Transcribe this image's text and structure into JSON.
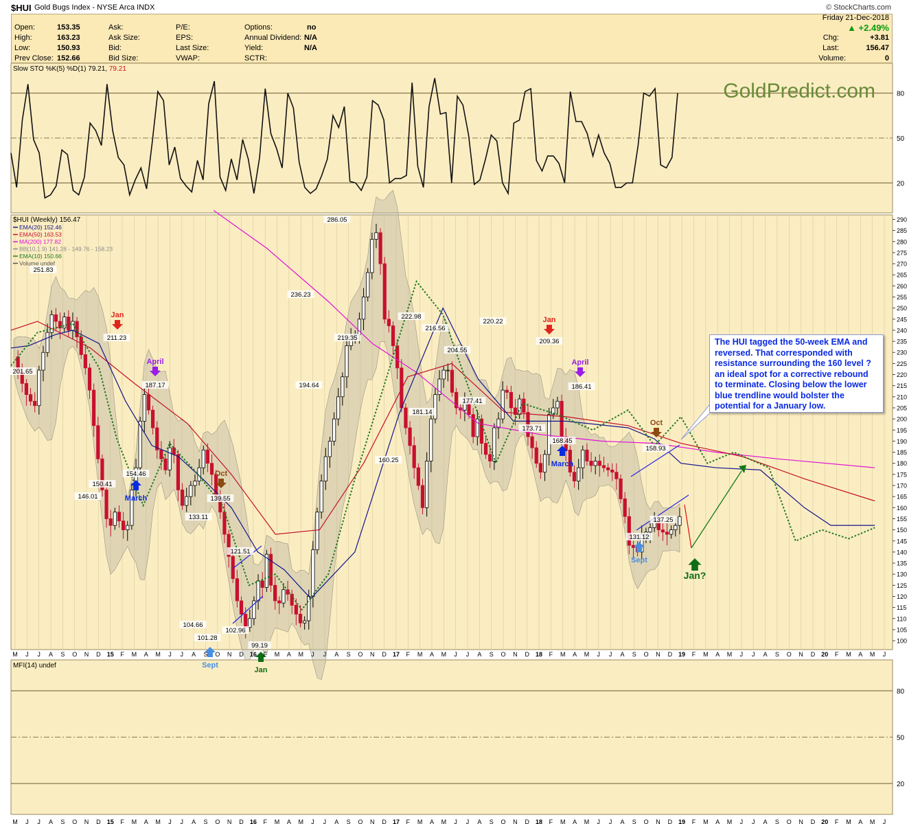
{
  "header": {
    "symbol": "$HUI",
    "name": "Gold Bugs Index - NYSE Arca  INDX",
    "source": "© StockCharts.com"
  },
  "quote": {
    "open_label": "Open:",
    "open": "153.35",
    "high_label": "High:",
    "high": "163.23",
    "low_label": "Low:",
    "low": "150.93",
    "prevclose_label": "Prev Close:",
    "prevclose": "152.66",
    "ask_label": "Ask:",
    "asksize_label": "Ask Size:",
    "bid_label": "Bid:",
    "bidsize_label": "Bid Size:",
    "pe_label": "P/E:",
    "eps_label": "EPS:",
    "lastsize_label": "Last Size:",
    "vwap_label": "VWAP:",
    "options_label": "Options:",
    "options": "no",
    "dividend_label": "Annual Dividend:",
    "dividend": "N/A",
    "yield_label": "Yield:",
    "yield": "N/A",
    "sctr_label": "SCTR:",
    "date": "Friday  21-Dec-2018",
    "pct": "▲ +2.49%",
    "chg_label": "Chg:",
    "chg": "+3.81",
    "last_label": "Last:",
    "last": "156.47",
    "volume_label": "Volume:",
    "volume": "0",
    "up_color": "#0a9a0a"
  },
  "watermark": "GoldPredict.com",
  "annotation_box": "The HUI tagged the 50-week EMA and reversed. That corresponded with resistance surrounding the 160 level ? an ideal spot for a corrective rebound to terminate. Closing below the lower blue trendline would bolster the potential for a January low.",
  "chart_data": [
    {
      "type": "line",
      "title": "Slow STO %K(5) %D(1) 79.21, 79.21",
      "title_text": "Slow STO %K(5) %D(1) 79.21,",
      "title_value2": "79.21",
      "yticks": [
        20,
        50,
        80
      ],
      "ylim": [
        0,
        100
      ],
      "series": [
        {
          "name": "Slow STO %K(5)",
          "values": [
            40,
            17,
            62,
            86,
            49,
            40,
            10,
            12,
            18,
            42,
            39,
            15,
            12,
            24,
            60,
            55,
            45,
            86,
            55,
            37,
            32,
            12,
            22,
            30,
            16,
            47,
            81,
            75,
            32,
            44,
            23,
            18,
            14,
            35,
            22,
            73,
            88,
            24,
            15,
            36,
            22,
            49,
            36,
            13,
            37,
            83,
            53,
            43,
            30,
            80,
            70,
            34,
            17,
            13,
            16,
            25,
            36,
            65,
            57,
            71,
            21,
            20,
            15,
            24,
            75,
            72,
            62,
            20,
            23,
            23,
            25,
            87,
            31,
            17,
            71,
            90,
            66,
            67,
            20,
            78,
            72,
            52,
            19,
            22,
            36,
            52,
            48,
            20,
            13,
            60,
            62,
            81,
            83,
            35,
            28,
            38,
            38,
            33,
            20,
            81,
            61,
            61,
            53,
            38,
            52,
            40,
            33,
            17,
            17,
            20,
            20,
            45,
            80,
            78,
            83,
            32,
            30,
            37,
            80
          ]
        }
      ]
    },
    {
      "type": "candlestick",
      "title": "$HUI (Weekly) 156.47",
      "yticks": [
        100,
        105,
        110,
        115,
        120,
        125,
        130,
        135,
        140,
        145,
        150,
        155,
        160,
        165,
        170,
        175,
        180,
        185,
        190,
        195,
        200,
        205,
        210,
        215,
        220,
        225,
        230,
        235,
        240,
        245,
        250,
        255,
        260,
        265,
        270,
        275,
        280,
        285,
        290
      ],
      "ylim": [
        96,
        292
      ],
      "legend": [
        "EMA(20) 152.46",
        "EMA(50) 163.53",
        "MA(200) 177.82",
        "BB(10,1.9) 141.28 - 149.76 - 158.23",
        "EMA(10) 150.66",
        "Volume undef"
      ],
      "legend_colors": [
        "#14148c",
        "#c4102a",
        "#e010d8",
        "#8a8a8a",
        "#1f7a1f",
        "#555555"
      ],
      "x_labels": [
        "M",
        "J",
        "J",
        "A",
        "S",
        "O",
        "N",
        "D",
        "15",
        "F",
        "M",
        "A",
        "M",
        "J",
        "J",
        "A",
        "S",
        "O",
        "N",
        "D",
        "16",
        "F",
        "M",
        "A",
        "M",
        "J",
        "J",
        "A",
        "S",
        "O",
        "N",
        "D",
        "17",
        "F",
        "M",
        "A",
        "M",
        "J",
        "J",
        "A",
        "S",
        "O",
        "N",
        "D",
        "18",
        "F",
        "M",
        "A",
        "M",
        "J",
        "J",
        "A",
        "S",
        "O",
        "N",
        "D",
        "19",
        "F",
        "M",
        "A",
        "M",
        "J",
        "J",
        "A",
        "S",
        "O",
        "N",
        "D",
        "20",
        "F",
        "M",
        "A",
        "M",
        "J"
      ],
      "x_index_start": 0,
      "x_index_end": 73,
      "series": [
        {
          "name": "$HUI (Weekly)",
          "values": [
            228,
            221,
            216,
            211,
            208,
            206,
            222,
            230,
            239,
            247,
            244,
            241,
            246,
            240,
            244,
            237,
            229,
            223,
            213,
            197,
            182,
            168,
            155,
            152,
            158,
            154,
            150,
            152,
            168,
            178,
            199,
            211,
            204,
            196,
            186,
            182,
            177,
            187,
            184,
            168,
            161,
            165,
            170,
            172,
            178,
            186,
            180,
            175,
            165,
            158,
            148,
            138,
            128,
            118,
            112,
            106,
            110,
            118,
            127,
            124,
            139,
            125,
            118,
            117,
            123,
            121,
            116,
            112,
            108,
            109,
            120,
            141,
            158,
            172,
            183,
            190,
            200,
            210,
            219,
            233,
            237,
            238,
            245,
            255,
            266,
            281,
            284,
            270,
            245,
            242,
            233,
            223,
            205,
            196,
            188,
            178,
            170,
            160,
            181,
            200,
            211,
            218,
            222,
            222,
            212,
            205,
            204,
            208,
            202,
            192,
            200,
            189,
            184,
            181,
            196,
            200,
            213,
            212,
            205,
            202,
            209,
            203,
            192,
            187,
            180,
            176,
            184,
            202,
            205,
            208,
            192,
            186,
            176,
            172,
            178,
            186,
            181,
            179,
            181,
            179,
            178,
            177,
            176,
            173,
            164,
            156,
            143,
            142,
            140,
            148,
            149,
            151,
            154,
            150,
            149,
            148,
            150,
            152,
            156
          ]
        }
      ],
      "ema20": [
        {
          "x": 0,
          "y": 232
        },
        {
          "x": 0.02,
          "y": 233
        },
        {
          "x": 0.05,
          "y": 238
        },
        {
          "x": 0.07,
          "y": 240
        },
        {
          "x": 0.1,
          "y": 234
        },
        {
          "x": 0.13,
          "y": 208
        },
        {
          "x": 0.16,
          "y": 188
        },
        {
          "x": 0.19,
          "y": 183
        },
        {
          "x": 0.22,
          "y": 172
        },
        {
          "x": 0.25,
          "y": 160
        },
        {
          "x": 0.28,
          "y": 140
        },
        {
          "x": 0.31,
          "y": 132
        },
        {
          "x": 0.34,
          "y": 119
        },
        {
          "x": 0.39,
          "y": 140
        },
        {
          "x": 0.44,
          "y": 202
        },
        {
          "x": 0.49,
          "y": 250
        },
        {
          "x": 0.53,
          "y": 218
        },
        {
          "x": 0.57,
          "y": 199
        },
        {
          "x": 0.63,
          "y": 199
        },
        {
          "x": 0.7,
          "y": 196
        },
        {
          "x": 0.73,
          "y": 191
        },
        {
          "x": 0.76,
          "y": 180
        },
        {
          "x": 0.8,
          "y": 178
        },
        {
          "x": 0.85,
          "y": 177
        },
        {
          "x": 0.9,
          "y": 160
        },
        {
          "x": 0.93,
          "y": 152
        },
        {
          "x": 0.98,
          "y": 152
        }
      ],
      "ema50": [
        {
          "x": 0,
          "y": 240
        },
        {
          "x": 0.03,
          "y": 244
        },
        {
          "x": 0.09,
          "y": 232
        },
        {
          "x": 0.14,
          "y": 216
        },
        {
          "x": 0.2,
          "y": 198
        },
        {
          "x": 0.25,
          "y": 175
        },
        {
          "x": 0.3,
          "y": 148
        },
        {
          "x": 0.35,
          "y": 150
        },
        {
          "x": 0.4,
          "y": 180
        },
        {
          "x": 0.45,
          "y": 219
        },
        {
          "x": 0.5,
          "y": 225
        },
        {
          "x": 0.56,
          "y": 203
        },
        {
          "x": 0.63,
          "y": 201
        },
        {
          "x": 0.7,
          "y": 197
        },
        {
          "x": 0.76,
          "y": 189
        },
        {
          "x": 0.83,
          "y": 183
        },
        {
          "x": 0.9,
          "y": 173
        },
        {
          "x": 0.98,
          "y": 163
        }
      ],
      "ma200": [
        {
          "x": 0.23,
          "y": 294
        },
        {
          "x": 0.29,
          "y": 277
        },
        {
          "x": 0.36,
          "y": 253
        },
        {
          "x": 0.41,
          "y": 234
        },
        {
          "x": 0.46,
          "y": 221
        },
        {
          "x": 0.53,
          "y": 198
        },
        {
          "x": 0.6,
          "y": 193
        },
        {
          "x": 0.67,
          "y": 190
        },
        {
          "x": 0.73,
          "y": 189
        },
        {
          "x": 0.8,
          "y": 185
        },
        {
          "x": 0.87,
          "y": 182
        },
        {
          "x": 0.98,
          "y": 178
        }
      ],
      "ema10": [
        {
          "x": 0,
          "y": 224
        },
        {
          "x": 0.03,
          "y": 239
        },
        {
          "x": 0.07,
          "y": 243
        },
        {
          "x": 0.1,
          "y": 223
        },
        {
          "x": 0.12,
          "y": 191
        },
        {
          "x": 0.15,
          "y": 161
        },
        {
          "x": 0.18,
          "y": 189
        },
        {
          "x": 0.21,
          "y": 176
        },
        {
          "x": 0.24,
          "y": 161
        },
        {
          "x": 0.27,
          "y": 125
        },
        {
          "x": 0.3,
          "y": 130
        },
        {
          "x": 0.33,
          "y": 114
        },
        {
          "x": 0.36,
          "y": 130
        },
        {
          "x": 0.39,
          "y": 173
        },
        {
          "x": 0.42,
          "y": 211
        },
        {
          "x": 0.46,
          "y": 262
        },
        {
          "x": 0.49,
          "y": 247
        },
        {
          "x": 0.52,
          "y": 213
        },
        {
          "x": 0.55,
          "y": 180
        },
        {
          "x": 0.58,
          "y": 207
        },
        {
          "x": 0.62,
          "y": 202
        },
        {
          "x": 0.66,
          "y": 195
        },
        {
          "x": 0.7,
          "y": 204
        },
        {
          "x": 0.73,
          "y": 188
        },
        {
          "x": 0.76,
          "y": 201
        },
        {
          "x": 0.79,
          "y": 180
        },
        {
          "x": 0.82,
          "y": 185
        },
        {
          "x": 0.86,
          "y": 178
        },
        {
          "x": 0.89,
          "y": 145
        },
        {
          "x": 0.92,
          "y": 150
        },
        {
          "x": 0.95,
          "y": 146
        },
        {
          "x": 0.98,
          "y": 151
        }
      ],
      "value_labels": [
        "251.83",
        "201.65",
        "211.23",
        "187.17",
        "146.01",
        "150.41",
        "154.46",
        "139.55",
        "133.11",
        "104.66",
        "101.28",
        "121.51",
        "102.96",
        "99.19",
        "236.23",
        "194.64",
        "286.05",
        "219.35",
        "160.25",
        "222.98",
        "181.14",
        "216.56",
        "204.55",
        "177.41",
        "220.22",
        "209.36",
        "173.71",
        "186.41",
        "168.45",
        "158.93",
        "131.12",
        "137.25"
      ],
      "event_labels": [
        "Jan",
        "April",
        "March",
        "Oct",
        "Sept",
        "Jan",
        "Jan",
        "April",
        "March",
        "Oct",
        "Sept",
        "Jan?"
      ]
    },
    {
      "type": "line",
      "title": "MFI(14) undef",
      "yticks": [
        20,
        50,
        80
      ],
      "ylim": [
        0,
        100
      ],
      "series": []
    }
  ],
  "colors": {
    "panel_bg": "#fbedc2",
    "grid": "#d9c995",
    "candle_down": "#c8102e",
    "candle_up": "#000000",
    "band": "#bdb8a3",
    "label_red": "#e0251c",
    "label_purple": "#9b1be8",
    "label_blue": "#0a2ae0",
    "label_brown": "#8a4a10",
    "label_sept": "#4a8fe0",
    "label_green": "#0d6e16"
  }
}
